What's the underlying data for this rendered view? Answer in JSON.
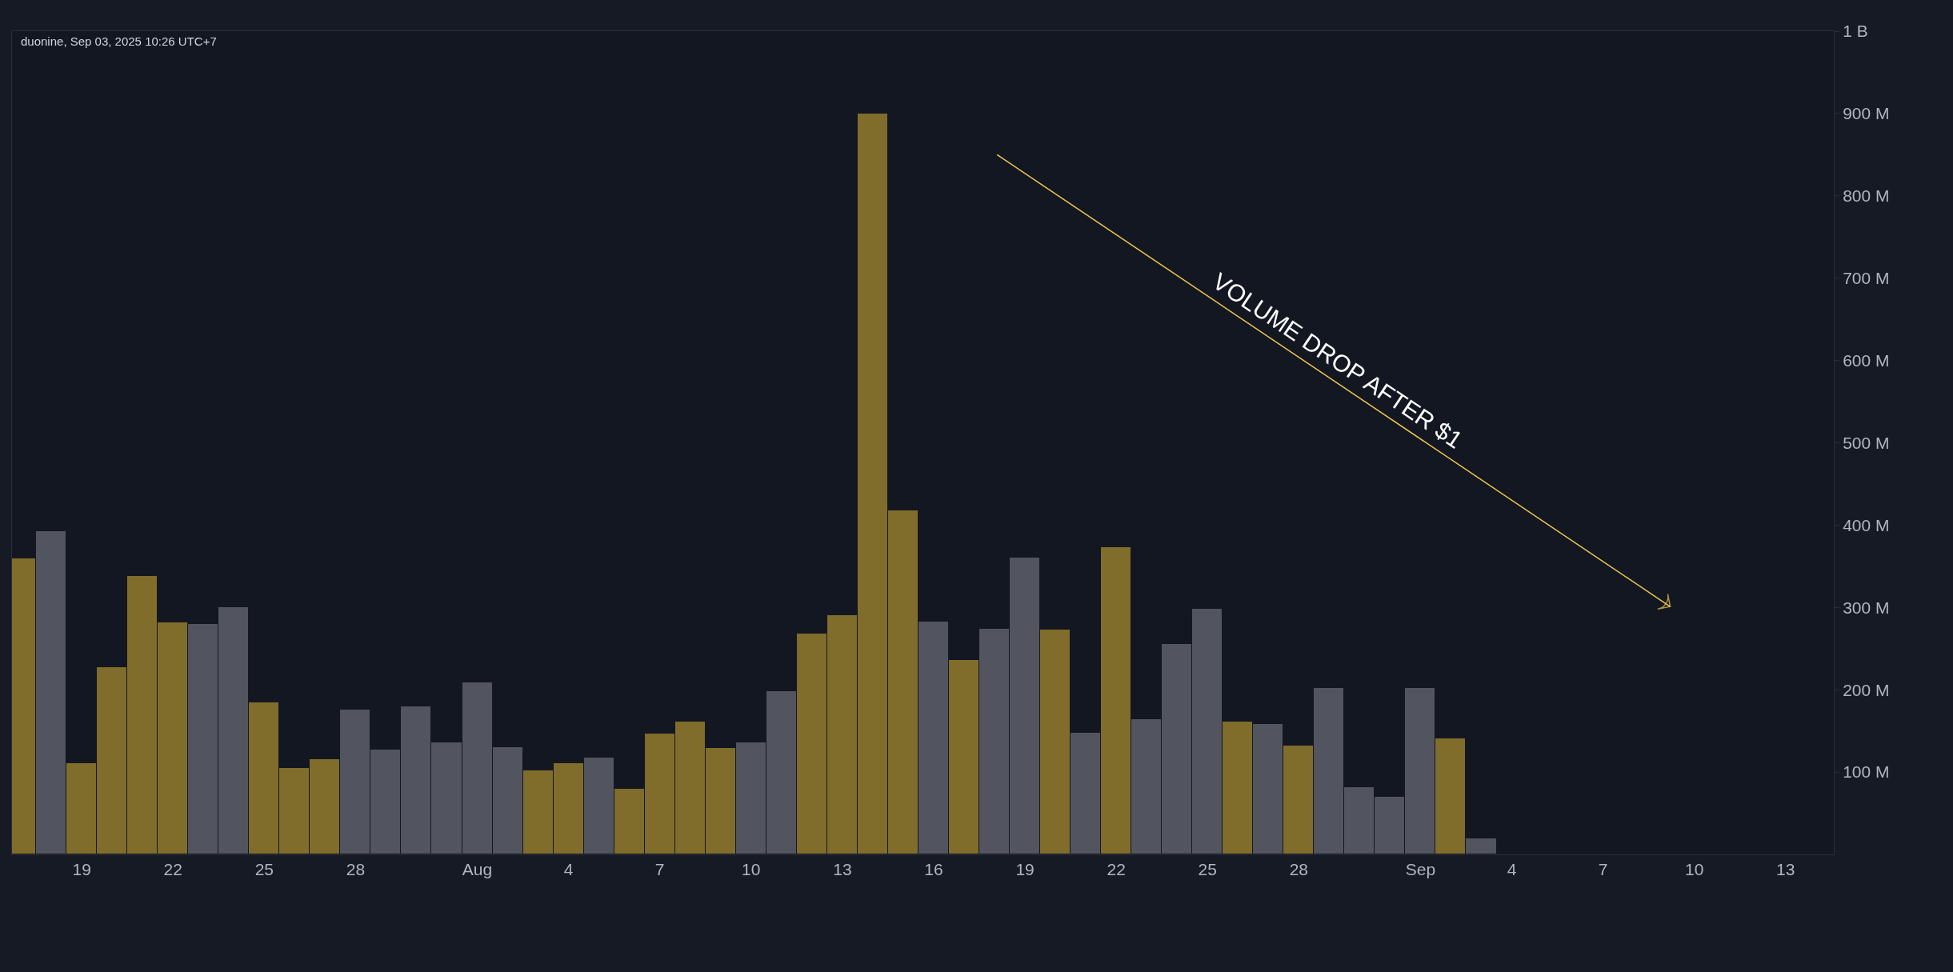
{
  "chart_data": {
    "type": "bar",
    "x": [
      "2025-07-17",
      "2025-07-18",
      "2025-07-19",
      "2025-07-20",
      "2025-07-21",
      "2025-07-22",
      "2025-07-23",
      "2025-07-24",
      "2025-07-25",
      "2025-07-26",
      "2025-07-27",
      "2025-07-28",
      "2025-07-29",
      "2025-07-30",
      "2025-07-31",
      "2025-08-01",
      "2025-08-02",
      "2025-08-03",
      "2025-08-04",
      "2025-08-05",
      "2025-08-06",
      "2025-08-07",
      "2025-08-08",
      "2025-08-09",
      "2025-08-10",
      "2025-08-11",
      "2025-08-12",
      "2025-08-13",
      "2025-08-14",
      "2025-08-15",
      "2025-08-16",
      "2025-08-17",
      "2025-08-18",
      "2025-08-19",
      "2025-08-20",
      "2025-08-21",
      "2025-08-22",
      "2025-08-23",
      "2025-08-24",
      "2025-08-25",
      "2025-08-26",
      "2025-08-27",
      "2025-08-28",
      "2025-08-29",
      "2025-08-30",
      "2025-08-31",
      "2025-09-01",
      "2025-09-02",
      "2025-09-03"
    ],
    "series": [
      {
        "values": [
          360000000,
          393000000,
          111000000,
          227000000,
          338000000,
          282000000,
          280000000,
          300000000,
          185000000,
          105000000,
          116000000,
          176000000,
          127000000,
          180000000,
          136000000,
          209000000,
          130000000,
          102000000,
          111000000,
          118000000,
          80000000,
          147000000,
          161000000,
          129000000,
          136000000,
          198000000,
          268000000,
          291000000,
          900000000,
          418000000,
          283000000,
          236000000,
          274000000,
          361000000,
          273000000,
          148000000,
          373000000,
          164000000,
          256000000,
          298000000,
          161000000,
          158000000,
          132000000,
          202000000,
          82000000,
          70000000,
          202000000,
          141000000,
          19000000
        ],
        "colors": [
          "#806d2b",
          "#52545f",
          "#806d2b",
          "#806d2b",
          "#806d2b",
          "#806d2b",
          "#52545f",
          "#52545f",
          "#806d2b",
          "#806d2b",
          "#806d2b",
          "#52545f",
          "#52545f",
          "#52545f",
          "#52545f",
          "#52545f",
          "#52545f",
          "#806d2b",
          "#806d2b",
          "#52545f",
          "#806d2b",
          "#806d2b",
          "#806d2b",
          "#806d2b",
          "#52545f",
          "#52545f",
          "#806d2b",
          "#806d2b",
          "#806d2b",
          "#806d2b",
          "#52545f",
          "#806d2b",
          "#52545f",
          "#52545f",
          "#806d2b",
          "#52545f",
          "#806d2b",
          "#52545f",
          "#52545f",
          "#52545f",
          "#806d2b",
          "#52545f",
          "#806d2b",
          "#52545f",
          "#52545f",
          "#52545f",
          "#52545f",
          "#806d2b",
          "#52545f"
        ]
      },
      {
        "type": "line",
        "x": [
          "2025-08-18T02:00",
          "2025-09-09T05:00"
        ],
        "values": [
          850000000,
          301000000
        ],
        "color": "#f2c94c"
      }
    ],
    "xlim": [
      "2025-07-16T17:00",
      "2025-09-14T14:00"
    ],
    "xticks": [
      {
        "value": "2025-07-19",
        "label": "19"
      },
      {
        "value": "2025-07-22",
        "label": "22"
      },
      {
        "value": "2025-07-25",
        "label": "25"
      },
      {
        "value": "2025-07-28",
        "label": "28"
      },
      {
        "value": "2025-08-01",
        "label": "Aug"
      },
      {
        "value": "2025-08-04",
        "label": "4"
      },
      {
        "value": "2025-08-07",
        "label": "7"
      },
      {
        "value": "2025-08-10",
        "label": "10"
      },
      {
        "value": "2025-08-13",
        "label": "13"
      },
      {
        "value": "2025-08-16",
        "label": "16"
      },
      {
        "value": "2025-08-19",
        "label": "19"
      },
      {
        "value": "2025-08-22",
        "label": "22"
      },
      {
        "value": "2025-08-25",
        "label": "25"
      },
      {
        "value": "2025-08-28",
        "label": "28"
      },
      {
        "value": "2025-09-01",
        "label": "Sep"
      },
      {
        "value": "2025-09-04",
        "label": "4"
      },
      {
        "value": "2025-09-07",
        "label": "7"
      },
      {
        "value": "2025-09-10",
        "label": "10"
      },
      {
        "value": "2025-09-13",
        "label": "13"
      }
    ],
    "ylim": [
      0,
      1000000000
    ],
    "yticks": [
      {
        "value": 100000000,
        "label": "100 M"
      },
      {
        "value": 200000000,
        "label": "200 M"
      },
      {
        "value": 300000000,
        "label": "300 M"
      },
      {
        "value": 400000000,
        "label": "400 M"
      },
      {
        "value": 500000000,
        "label": "500 M"
      },
      {
        "value": 600000000,
        "label": "600 M"
      },
      {
        "value": 700000000,
        "label": "700 M"
      },
      {
        "value": 800000000,
        "label": "800 M"
      },
      {
        "value": 900000000,
        "label": "900 M"
      },
      {
        "value": 1000000000,
        "label": "1 B"
      }
    ],
    "grid": false,
    "legend": false,
    "annotations": [
      "VOLUME DROP AFTER $1",
      "duonine, Sep 03, 2025 10:26 UTC+7"
    ]
  }
}
